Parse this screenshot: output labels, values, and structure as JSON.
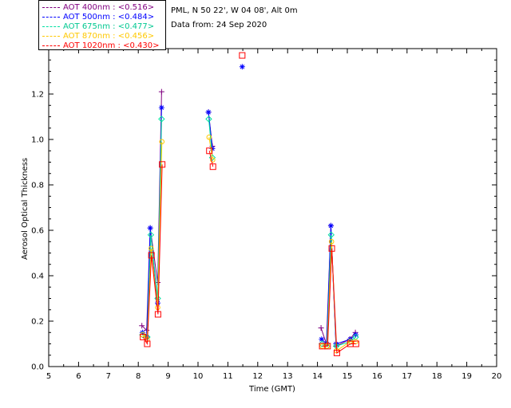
{
  "chart_data": {
    "type": "scatter",
    "title": "",
    "xlabel": "Time (GMT)",
    "ylabel": "Aerosol Optical Thickness",
    "xlim": [
      5,
      20
    ],
    "ylim": [
      0.0,
      1.4
    ],
    "xticks": [
      "5",
      "6",
      "7",
      "8",
      "9",
      "10",
      "11",
      "12",
      "13",
      "14",
      "15",
      "16",
      "17",
      "18",
      "19",
      "20"
    ],
    "yticks": [
      "0.0",
      "0.2",
      "0.4",
      "0.6",
      "0.8",
      "1.0",
      "1.2"
    ],
    "info_lines": [
      "PML, N 50 22', W 04 08', Alt 0m",
      "Data from: 24 Sep 2020"
    ],
    "series": [
      {
        "name": "AOT  400nm : <0.516>",
        "color": "#800080",
        "marker": "plus",
        "points": [
          [
            8.12,
            0.18
          ],
          [
            8.28,
            0.16
          ],
          [
            8.4,
            0.61
          ],
          [
            8.65,
            0.37
          ],
          [
            8.78,
            1.21
          ],
          [
            10.35,
            1.12
          ],
          [
            10.48,
            0.97
          ],
          [
            14.12,
            0.17
          ],
          [
            14.3,
            0.1
          ],
          [
            14.45,
            0.62
          ],
          [
            14.62,
            0.09
          ],
          [
            15.08,
            0.12
          ],
          [
            15.27,
            0.15
          ]
        ]
      },
      {
        "name": "AOT  500nm : <0.484>",
        "color": "#0000ff",
        "marker": "star",
        "points": [
          [
            8.14,
            0.15
          ],
          [
            8.28,
            0.13
          ],
          [
            8.4,
            0.61
          ],
          [
            8.65,
            0.28
          ],
          [
            8.78,
            1.14
          ],
          [
            10.35,
            1.12
          ],
          [
            10.48,
            0.96
          ],
          [
            11.48,
            1.32
          ],
          [
            14.14,
            0.12
          ],
          [
            14.31,
            0.1
          ],
          [
            14.45,
            0.62
          ],
          [
            14.62,
            0.1
          ],
          [
            15.1,
            0.12
          ],
          [
            15.28,
            0.14
          ]
        ]
      },
      {
        "name": "AOT  675nm : <0.477>",
        "color": "#00e0a0",
        "marker": "diamond",
        "points": [
          [
            8.14,
            0.14
          ],
          [
            8.3,
            0.13
          ],
          [
            8.42,
            0.58
          ],
          [
            8.65,
            0.3
          ],
          [
            8.78,
            1.09
          ],
          [
            10.36,
            1.09
          ],
          [
            10.48,
            0.92
          ],
          [
            14.15,
            0.1
          ],
          [
            14.32,
            0.09
          ],
          [
            14.46,
            0.58
          ],
          [
            14.63,
            0.09
          ],
          [
            15.1,
            0.11
          ],
          [
            15.28,
            0.13
          ]
        ]
      },
      {
        "name": "AOT  870nm : <0.456>",
        "color": "#ffc800",
        "marker": "circle",
        "points": [
          [
            8.15,
            0.14
          ],
          [
            8.3,
            0.12
          ],
          [
            8.43,
            0.52
          ],
          [
            8.65,
            0.26
          ],
          [
            8.79,
            0.99
          ],
          [
            10.37,
            1.01
          ],
          [
            10.49,
            0.91
          ],
          [
            14.16,
            0.09
          ],
          [
            14.33,
            0.09
          ],
          [
            14.47,
            0.55
          ],
          [
            14.64,
            0.07
          ],
          [
            15.1,
            0.11
          ],
          [
            15.28,
            0.11
          ]
        ]
      },
      {
        "name": "AOT 1020nm : <0.430>",
        "color": "#ff0000",
        "marker": "square",
        "points": [
          [
            8.16,
            0.13
          ],
          [
            8.3,
            0.1
          ],
          [
            8.44,
            0.49
          ],
          [
            8.66,
            0.23
          ],
          [
            8.8,
            0.89
          ],
          [
            10.38,
            0.95
          ],
          [
            10.5,
            0.88
          ],
          [
            11.48,
            1.37
          ],
          [
            14.16,
            0.09
          ],
          [
            14.34,
            0.09
          ],
          [
            14.48,
            0.52
          ],
          [
            14.65,
            0.06
          ],
          [
            15.1,
            0.1
          ],
          [
            15.29,
            0.1
          ]
        ]
      }
    ]
  }
}
